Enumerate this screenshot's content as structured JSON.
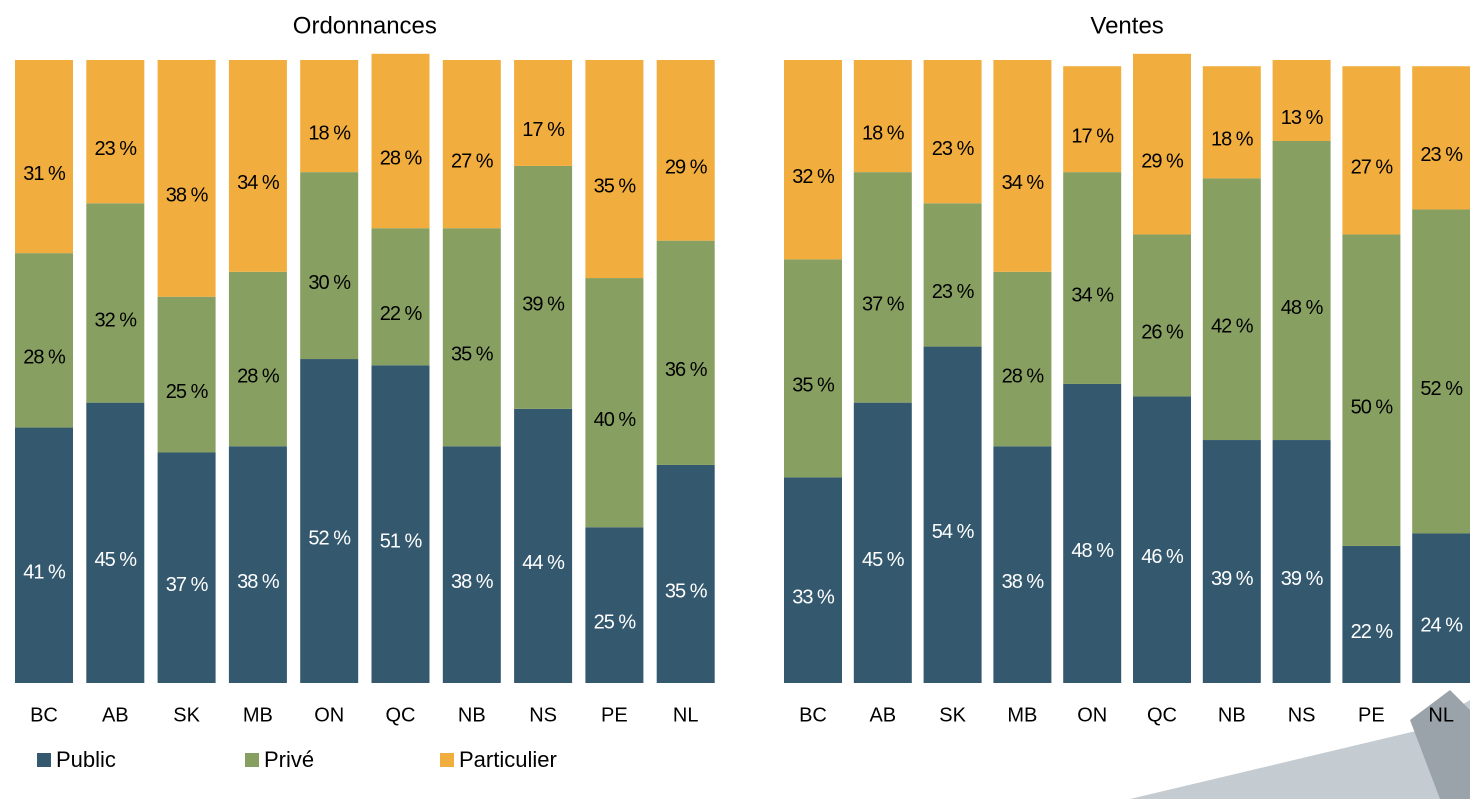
{
  "chart_data": [
    {
      "type": "stacked_bar",
      "title": "Ordonnances",
      "categories": [
        "BC",
        "AB",
        "SK",
        "MB",
        "ON",
        "QC",
        "NB",
        "NS",
        "PE",
        "NL"
      ],
      "ylim": [
        0,
        100
      ],
      "series": [
        {
          "name": "Public",
          "color": "#34596f",
          "values": [
            41,
            45,
            37,
            38,
            52,
            51,
            38,
            44,
            25,
            35
          ],
          "value_labels": [
            "41 %",
            "45 %",
            "37 %",
            "38 %",
            "52 %",
            "51 %",
            "38 %",
            "44 %",
            "25 %",
            "35 %"
          ]
        },
        {
          "name": "Privé",
          "color": "#87a061",
          "values": [
            28,
            32,
            25,
            28,
            30,
            22,
            35,
            39,
            40,
            36
          ],
          "value_labels": [
            "28 %",
            "32 %",
            "25 %",
            "28 %",
            "30 %",
            "22 %",
            "35 %",
            "39 %",
            "40 %",
            "36 %"
          ]
        },
        {
          "name": "Particulier",
          "color": "#f1ad3d",
          "values": [
            31,
            23,
            38,
            34,
            18,
            28,
            27,
            17,
            35,
            29
          ],
          "value_labels": [
            "31 %",
            "23 %",
            "38 %",
            "34 %",
            "18 %",
            "28 %",
            "27 %",
            "17 %",
            "35 %",
            "29 %"
          ]
        }
      ]
    },
    {
      "type": "stacked_bar",
      "title": "Ventes",
      "categories": [
        "BC",
        "AB",
        "SK",
        "MB",
        "ON",
        "QC",
        "NB",
        "NS",
        "PE",
        "NL"
      ],
      "ylim": [
        0,
        100
      ],
      "series": [
        {
          "name": "Public",
          "color": "#34596f",
          "values": [
            33,
            45,
            54,
            38,
            48,
            46,
            39,
            39,
            22,
            24
          ],
          "value_labels": [
            "33 %",
            "45 %",
            "54 %",
            "38 %",
            "48 %",
            "46 %",
            "39 %",
            "39 %",
            "22 %",
            "24 %"
          ]
        },
        {
          "name": "Privé",
          "color": "#87a061",
          "values": [
            35,
            37,
            23,
            28,
            34,
            26,
            42,
            48,
            50,
            52
          ],
          "value_labels": [
            "35 %",
            "37 %",
            "23 %",
            "28 %",
            "34 %",
            "26 %",
            "42 %",
            "48 %",
            "50 %",
            "52 %"
          ]
        },
        {
          "name": "Particulier",
          "color": "#f1ad3d",
          "values": [
            32,
            18,
            23,
            34,
            17,
            29,
            18,
            13,
            27,
            23
          ],
          "value_labels": [
            "32 %",
            "18 %",
            "23 %",
            "34 %",
            "17 %",
            "29 %",
            "18 %",
            "13 %",
            "27 %",
            "23 %"
          ]
        }
      ]
    }
  ]
}
